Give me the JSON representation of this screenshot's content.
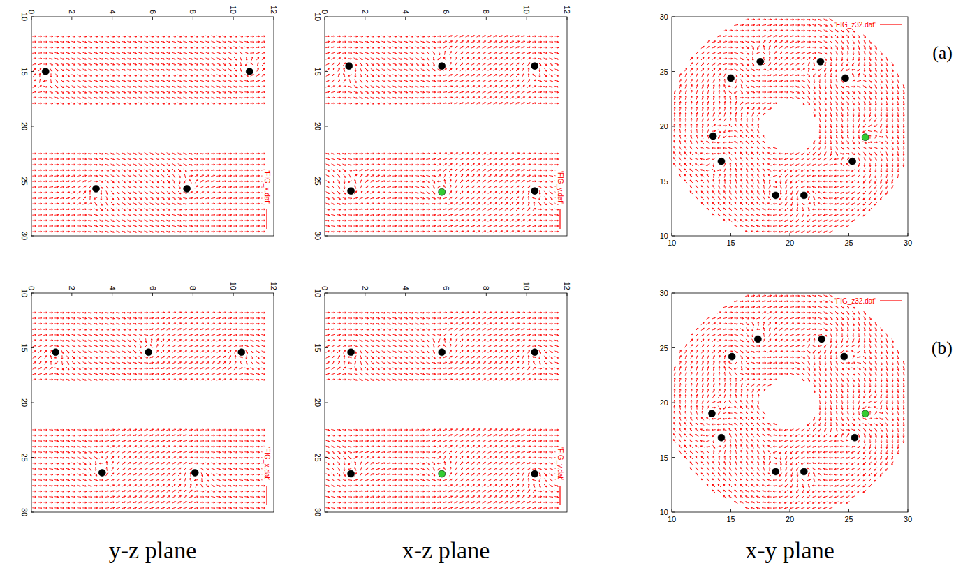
{
  "chart_data": [
    {
      "type": "vector",
      "xlim": [
        0,
        12
      ],
      "ylim": [
        30,
        10
      ],
      "xticks": [
        0,
        2,
        4,
        6,
        8,
        10,
        12
      ],
      "yticks": [
        10,
        15,
        20,
        25,
        30
      ],
      "series": [
        {
          "name": "'FIG_x.dat'",
          "color": "#ff0000",
          "type": "vector"
        }
      ],
      "points": {
        "x": [
          0.7,
          10.8,
          3.2,
          7.7
        ],
        "y": [
          15.0,
          15.0,
          25.7,
          25.7
        ],
        "colors": [
          "#000000",
          "#000000",
          "#000000",
          "#000000"
        ]
      }
    },
    {
      "type": "vector",
      "xlim": [
        0,
        12
      ],
      "ylim": [
        30,
        10
      ],
      "xticks": [
        0,
        2,
        4,
        6,
        8,
        10,
        12
      ],
      "yticks": [
        10,
        15,
        20,
        25,
        30
      ],
      "series": [
        {
          "name": "'FIG_y.dat'",
          "color": "#ff0000",
          "type": "vector"
        }
      ],
      "points": {
        "x": [
          1.2,
          5.8,
          10.4,
          1.3,
          10.4,
          5.8
        ],
        "y": [
          14.5,
          14.5,
          14.5,
          25.9,
          25.9,
          26.0
        ],
        "colors": [
          "#000000",
          "#000000",
          "#000000",
          "#000000",
          "#000000",
          "#33cc33"
        ]
      }
    },
    {
      "type": "vector",
      "xlim": [
        10,
        30
      ],
      "ylim": [
        10,
        30
      ],
      "xticks": [
        10,
        15,
        20,
        25,
        30
      ],
      "yticks": [
        10,
        15,
        20,
        25,
        30
      ],
      "series": [
        {
          "name": "'FIG_z32.dat'",
          "color": "#ff0000",
          "type": "vector"
        }
      ],
      "points": {
        "x": [
          15.0,
          17.5,
          22.6,
          24.7,
          13.5,
          14.2,
          25.3,
          26.4,
          18.8,
          21.2
        ],
        "y": [
          24.4,
          25.9,
          25.9,
          24.4,
          19.1,
          16.8,
          16.8,
          19.0,
          13.7,
          13.7
        ],
        "colors": [
          "#000000",
          "#000000",
          "#000000",
          "#000000",
          "#000000",
          "#000000",
          "#000000",
          "#33cc33",
          "#000000",
          "#000000"
        ]
      }
    },
    {
      "type": "vector",
      "xlim": [
        0,
        12
      ],
      "ylim": [
        30,
        10
      ],
      "xticks": [
        0,
        2,
        4,
        6,
        8,
        10,
        12
      ],
      "yticks": [
        10,
        15,
        20,
        25,
        30
      ],
      "series": [
        {
          "name": "'FIG_x.dat'",
          "color": "#ff0000",
          "type": "vector"
        }
      ],
      "points": {
        "x": [
          1.2,
          5.8,
          10.4,
          3.5,
          8.1
        ],
        "y": [
          15.4,
          15.4,
          15.4,
          26.4,
          26.4
        ],
        "colors": [
          "#000000",
          "#000000",
          "#000000",
          "#000000",
          "#000000"
        ]
      }
    },
    {
      "type": "vector",
      "xlim": [
        0,
        12
      ],
      "ylim": [
        30,
        10
      ],
      "xticks": [
        0,
        2,
        4,
        6,
        8,
        10,
        12
      ],
      "yticks": [
        10,
        15,
        20,
        25,
        30
      ],
      "series": [
        {
          "name": "'FIG_y.dat'",
          "color": "#ff0000",
          "type": "vector"
        }
      ],
      "points": {
        "x": [
          1.3,
          5.8,
          10.4,
          1.3,
          10.4,
          5.8
        ],
        "y": [
          15.4,
          15.4,
          15.4,
          26.5,
          26.5,
          26.5
        ],
        "colors": [
          "#000000",
          "#000000",
          "#000000",
          "#000000",
          "#000000",
          "#33cc33"
        ]
      }
    },
    {
      "type": "vector",
      "xlim": [
        10,
        30
      ],
      "ylim": [
        10,
        30
      ],
      "xticks": [
        10,
        15,
        20,
        25,
        30
      ],
      "yticks": [
        10,
        15,
        20,
        25,
        30
      ],
      "series": [
        {
          "name": "'FIG_z32.dat'",
          "color": "#ff0000",
          "type": "vector"
        }
      ],
      "points": {
        "x": [
          13.4,
          14.2,
          15.1,
          17.3,
          22.7,
          24.6,
          25.5,
          26.4,
          18.8,
          21.2
        ],
        "y": [
          19.0,
          16.8,
          24.2,
          25.8,
          25.8,
          24.2,
          16.8,
          19.0,
          13.7,
          13.7
        ],
        "colors": [
          "#000000",
          "#000000",
          "#000000",
          "#000000",
          "#000000",
          "#000000",
          "#000000",
          "#33cc33",
          "#000000",
          "#000000"
        ]
      }
    }
  ],
  "row_labels": [
    "(a)",
    "(b)"
  ],
  "column_labels": [
    "y-z plane",
    "x-z plane",
    "x-y plane"
  ]
}
